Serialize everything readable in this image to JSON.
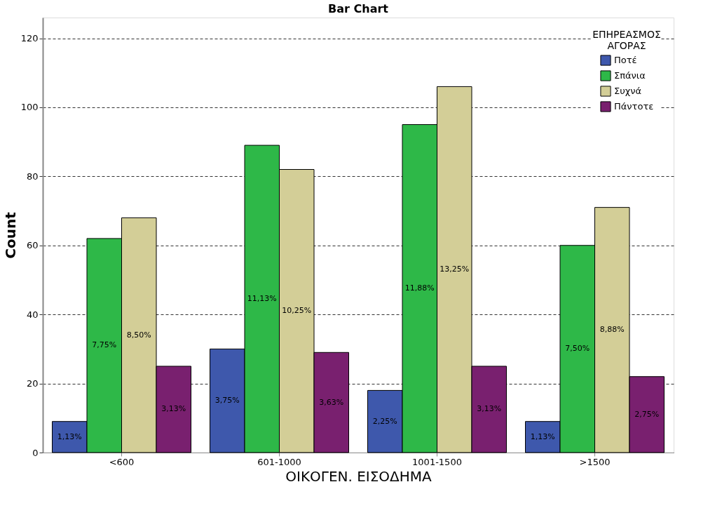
{
  "chart_data": {
    "type": "bar",
    "title": "Bar Chart",
    "xlabel": "ΟΙΚΟΓΕΝ. ΕΙΣΟΔΗΜΑ",
    "ylabel": "Count",
    "legend_title": "ΕΠΗΡΕΑΣΜΟΣ ΑΓΟΡΑΣ",
    "categories": [
      "<600",
      "601-1000",
      "1001-1500",
      ">1500"
    ],
    "series": [
      {
        "name": "Ποτέ",
        "color": "#3e58ac",
        "values": [
          9,
          30,
          18,
          9
        ]
      },
      {
        "name": "Σπάνια",
        "color": "#2eb848",
        "values": [
          62,
          89,
          95,
          60
        ]
      },
      {
        "name": "Συχνά",
        "color": "#d3ce97",
        "values": [
          68,
          82,
          106,
          71
        ]
      },
      {
        "name": "Πάντοτε",
        "color": "#79206f",
        "values": [
          25,
          29,
          25,
          22
        ]
      }
    ],
    "annotations": [
      "1,13%",
      "3,75%",
      "2,25%",
      "1,13%",
      "7,75%",
      "11,13%",
      "11,88%",
      "7,50%",
      "8,50%",
      "10,25%",
      "13,25%",
      "8,88%",
      "3,13%",
      "3,63%",
      "3,13%",
      "2,75%"
    ],
    "ylim": [
      0,
      126
    ],
    "yticks": [
      0,
      20,
      40,
      60,
      80,
      100,
      120
    ],
    "grid": "y",
    "legend": "top right"
  }
}
